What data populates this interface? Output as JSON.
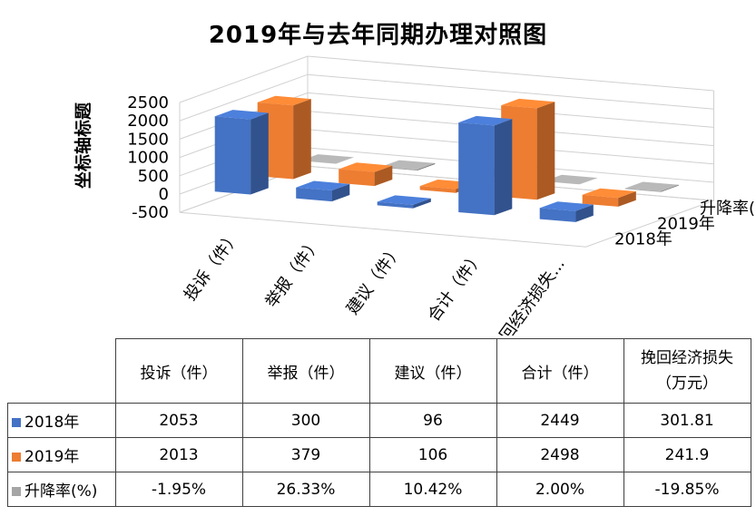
{
  "chart_data": {
    "type": "bar",
    "title": "2019年与去年同期办理对照图",
    "ylabel": "坐标轴标题",
    "ylim": [
      -500,
      2500
    ],
    "yticks": [
      "2500",
      "2000",
      "1500",
      "1000",
      "500",
      "0",
      "-500"
    ],
    "categories": [
      "投诉（件）",
      "举报（件）",
      "建议（件）",
      "合计（件）",
      "挽回经济损失（万元）"
    ],
    "axis_categories": [
      "投诉（件）",
      "举报（件）",
      "建议（件）",
      "合计（件）",
      "挽回经济损失..."
    ],
    "series": [
      {
        "name": "2018年",
        "color": "#4472C4",
        "values": [
          2053,
          300,
          96,
          2449,
          301.81
        ],
        "display": [
          "2053",
          "300",
          "96",
          "2449",
          "301.81"
        ]
      },
      {
        "name": "2019年",
        "color": "#ED7D31",
        "values": [
          2013,
          379,
          106,
          2498,
          241.9
        ],
        "display": [
          "2013",
          "379",
          "106",
          "2498",
          "241.9"
        ]
      },
      {
        "name": "升降率(%)",
        "color": "#A5A5A5",
        "values": [
          -1.95,
          26.33,
          10.42,
          2.0,
          -19.85
        ],
        "display": [
          "-1.95%",
          "26.33%",
          "10.42%",
          "2.00%",
          "-19.85%"
        ]
      }
    ],
    "grid": true,
    "legend": "data-table"
  },
  "table": {
    "headers": [
      "投诉（件）",
      "举报（件）",
      "建议（件）",
      "合计（件）",
      "挽回经济损失\n（万元）"
    ]
  }
}
